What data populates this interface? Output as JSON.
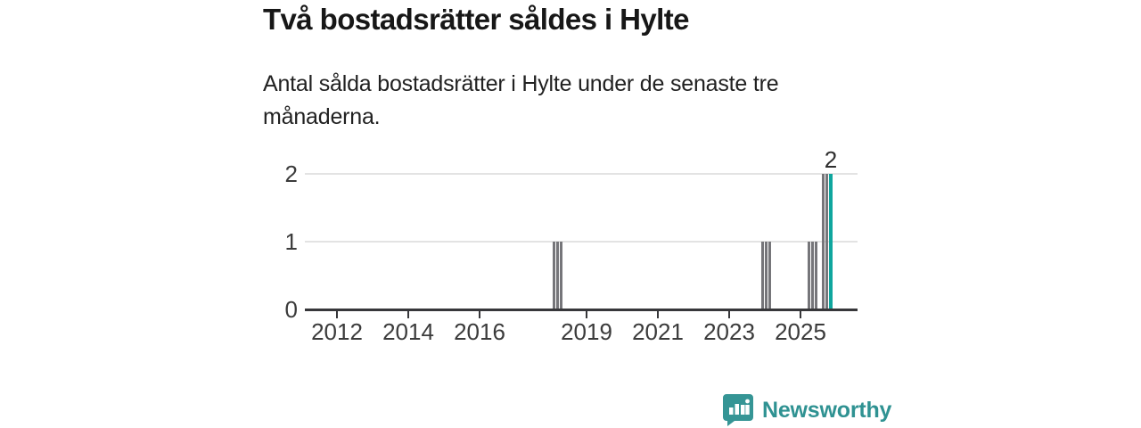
{
  "header": {
    "title": "Två bostadsrätter såldes i Hylte",
    "subtitle": "Antal sålda bostadsrätter i Hylte under de senaste tre månaderna.",
    "subtitle_lines": [
      "Antal sålda bostadsrätter i Hylte under de senaste tre",
      "månaderna."
    ]
  },
  "chart_data": {
    "type": "bar",
    "title": "Två bostadsrätter såldes i Hylte",
    "subtitle": "Antal sålda bostadsrätter i Hylte under de senaste tre månaderna.",
    "ylabel": "",
    "xlabel": "",
    "ylim": [
      0,
      2
    ],
    "y_ticks": [
      0,
      1,
      2
    ],
    "x_tick_years": [
      2012,
      2014,
      2016,
      2019,
      2021,
      2023,
      2025
    ],
    "x_domain_years": [
      2011.1,
      2026.6
    ],
    "grid": "horizontal",
    "legend": "none",
    "bars": [
      {
        "year": 2018.05,
        "value": 1,
        "highlight": false
      },
      {
        "year": 2018.15,
        "value": 1,
        "highlight": false
      },
      {
        "year": 2018.25,
        "value": 1,
        "highlight": false
      },
      {
        "year": 2023.9,
        "value": 1,
        "highlight": false
      },
      {
        "year": 2024.0,
        "value": 1,
        "highlight": false
      },
      {
        "year": 2024.1,
        "value": 1,
        "highlight": false
      },
      {
        "year": 2025.2,
        "value": 1,
        "highlight": false
      },
      {
        "year": 2025.3,
        "value": 1,
        "highlight": false
      },
      {
        "year": 2025.4,
        "value": 1,
        "highlight": false
      },
      {
        "year": 2025.6,
        "value": 2,
        "highlight": false
      },
      {
        "year": 2025.7,
        "value": 2,
        "highlight": false
      },
      {
        "year": 2025.8,
        "value": 2,
        "highlight": true
      }
    ],
    "annotation": {
      "label": "2",
      "year": 2025.8,
      "value": 2
    },
    "colors": {
      "bar": "#76767a",
      "highlight": "#0fa69e",
      "grid": "#e3e3e3",
      "axis": "#37373a",
      "tick_text": "#3b3b3b"
    }
  },
  "footer": {
    "brand": "Newsworthy",
    "brand_color": "#2f9292",
    "icon": "speech-bubble-bar-chart-icon"
  }
}
